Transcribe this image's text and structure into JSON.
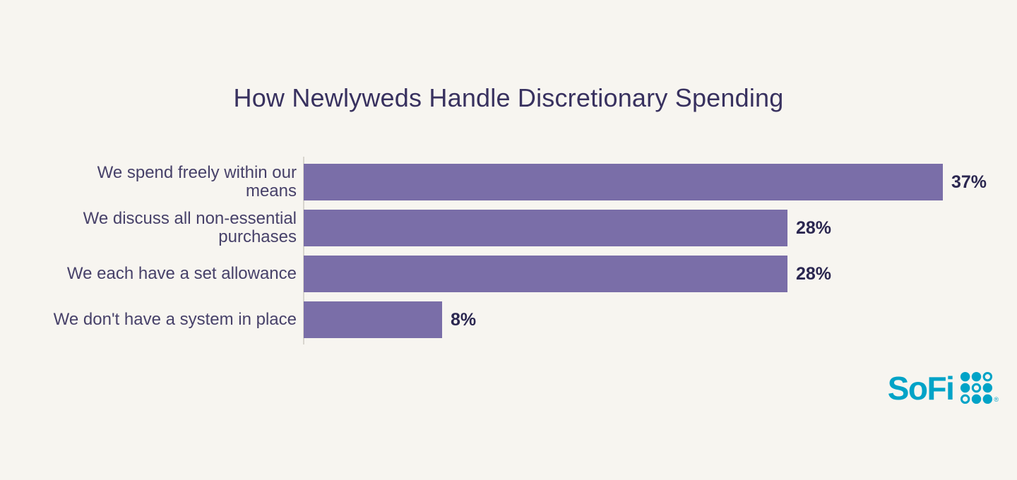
{
  "page": {
    "background": "#f7f5f0"
  },
  "chart_data": {
    "type": "bar",
    "orientation": "horizontal",
    "title": "How Newlyweds Handle Discretionary Spending",
    "categories": [
      "We spend freely within our\nmeans",
      "We discuss all non-essential\npurchases",
      "We each have a set allowance",
      "We don't have a system in place"
    ],
    "values": [
      37,
      28,
      28,
      8
    ],
    "value_labels": [
      "37%",
      "28%",
      "28%",
      "8%"
    ],
    "xlim": [
      0,
      37
    ],
    "grid": false,
    "legend": false,
    "colors": {
      "bar": "#7a6ea8",
      "title": "#38315f",
      "category_label": "#474169",
      "value_label": "#2b2750",
      "axis_line": "#d8d5ce"
    }
  },
  "branding": {
    "logo_text": "SoFi",
    "logo_color": "#00a3c7",
    "registered_mark": "®",
    "dots_icon_pattern": [
      "solid",
      "solid",
      "ring",
      "solid",
      "ring",
      "solid",
      "ring",
      "solid",
      "solid"
    ]
  }
}
